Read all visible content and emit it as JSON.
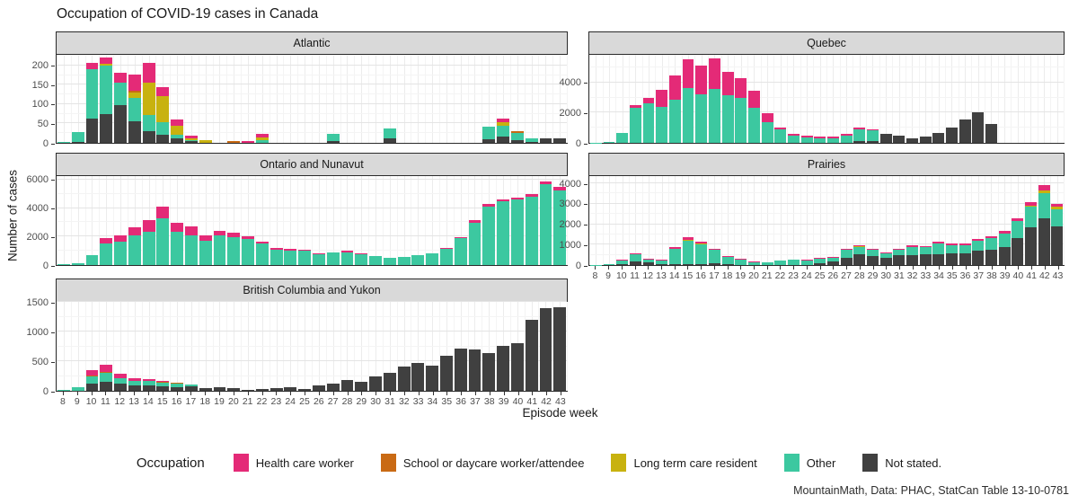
{
  "chart_data": {
    "type": "bar",
    "stacked": true,
    "title": "Occupation of COVID-19 cases in Canada",
    "xlabel": "Episode week",
    "ylabel": "Number of cases",
    "caption": "MountainMath, Data: PHAC, StatCan Table 13-10-0781",
    "grid": true,
    "weeks": [
      "8",
      "9",
      "10",
      "11",
      "12",
      "13",
      "14",
      "15",
      "16",
      "17",
      "18",
      "19",
      "20",
      "21",
      "22",
      "23",
      "24",
      "25",
      "26",
      "27",
      "28",
      "29",
      "30",
      "31",
      "32",
      "33",
      "34",
      "35",
      "36",
      "37",
      "38",
      "39",
      "40",
      "41",
      "42",
      "43"
    ],
    "legend": {
      "title": "Occupation",
      "position": "bottom",
      "entries": [
        {
          "key": "hcw",
          "label": "Health care worker",
          "color": "#e42a77"
        },
        {
          "key": "school",
          "label": "School or daycare worker/attendee",
          "color": "#c96a14"
        },
        {
          "key": "ltc",
          "label": "Long term care resident",
          "color": "#c8b20f"
        },
        {
          "key": "other",
          "label": "Other",
          "color": "#3cc8a0"
        },
        {
          "key": "not_stated",
          "label": "Not stated.",
          "color": "#404040"
        }
      ]
    },
    "stack_order_bottom_to_top": [
      "not_stated",
      "other",
      "ltc",
      "school",
      "hcw"
    ],
    "facets": [
      {
        "name": "Atlantic",
        "ylim": [
          0,
          230
        ],
        "yticks": [
          0,
          50,
          100,
          150,
          200
        ],
        "series": {
          "not_stated": [
            0,
            3,
            65,
            75,
            100,
            57,
            30,
            22,
            12,
            4,
            0,
            0,
            0,
            0,
            0,
            0,
            0,
            0,
            0,
            4,
            0,
            0,
            0,
            12,
            0,
            0,
            0,
            0,
            0,
            0,
            10,
            17,
            8,
            3,
            12,
            12
          ],
          "other": [
            2,
            25,
            130,
            130,
            60,
            61,
            43,
            33,
            10,
            4,
            0,
            0,
            0,
            0,
            8,
            0,
            0,
            0,
            0,
            19,
            0,
            0,
            0,
            26,
            0,
            0,
            0,
            0,
            0,
            0,
            32,
            28,
            19,
            8,
            0,
            0
          ],
          "ltc": [
            0,
            0,
            0,
            3,
            0,
            15,
            87,
            68,
            23,
            3,
            8,
            0,
            0,
            0,
            6,
            0,
            0,
            0,
            0,
            0,
            0,
            0,
            0,
            0,
            0,
            0,
            0,
            0,
            0,
            0,
            0,
            10,
            0,
            0,
            0,
            0
          ],
          "school": [
            0,
            0,
            0,
            0,
            0,
            5,
            0,
            0,
            0,
            0,
            0,
            0,
            5,
            0,
            0,
            0,
            0,
            0,
            0,
            0,
            0,
            0,
            0,
            0,
            0,
            0,
            0,
            0,
            0,
            0,
            0,
            0,
            3,
            0,
            0,
            0
          ],
          "hcw": [
            0,
            0,
            15,
            18,
            25,
            42,
            50,
            25,
            17,
            7,
            0,
            0,
            0,
            4,
            10,
            0,
            0,
            0,
            0,
            0,
            0,
            0,
            0,
            0,
            0,
            0,
            0,
            0,
            0,
            0,
            0,
            8,
            0,
            0,
            0,
            0
          ]
        }
      },
      {
        "name": "Quebec",
        "ylim": [
          0,
          5900
        ],
        "yticks": [
          0,
          2000,
          4000
        ],
        "series": {
          "not_stated": [
            0,
            0,
            0,
            0,
            0,
            0,
            0,
            0,
            0,
            0,
            0,
            0,
            0,
            0,
            0,
            0,
            0,
            0,
            0,
            0,
            100,
            150,
            600,
            480,
            320,
            400,
            650,
            1050,
            1600,
            2050,
            1300,
            0,
            0,
            0,
            0,
            0
          ],
          "other": [
            30,
            60,
            700,
            2350,
            2700,
            2450,
            2950,
            3700,
            3300,
            3650,
            3250,
            3050,
            2400,
            1400,
            900,
            500,
            380,
            330,
            330,
            480,
            800,
            700,
            0,
            0,
            0,
            0,
            0,
            0,
            0,
            0,
            0,
            0,
            0,
            0,
            0,
            0
          ],
          "ltc": [
            0,
            0,
            0,
            0,
            0,
            0,
            0,
            0,
            0,
            0,
            0,
            0,
            0,
            0,
            0,
            0,
            0,
            0,
            0,
            0,
            0,
            0,
            0,
            0,
            0,
            0,
            0,
            0,
            0,
            0,
            0,
            0,
            0,
            0,
            0,
            0
          ],
          "school": [
            0,
            0,
            0,
            30,
            0,
            0,
            0,
            0,
            0,
            0,
            0,
            0,
            0,
            0,
            0,
            0,
            0,
            0,
            0,
            0,
            0,
            0,
            0,
            0,
            0,
            0,
            0,
            0,
            0,
            0,
            0,
            0,
            0,
            0,
            0,
            0
          ],
          "hcw": [
            0,
            0,
            0,
            150,
            350,
            1150,
            1600,
            1950,
            1950,
            2050,
            1550,
            1350,
            1100,
            600,
            160,
            100,
            120,
            100,
            120,
            140,
            120,
            80,
            0,
            0,
            0,
            0,
            0,
            0,
            0,
            0,
            0,
            0,
            0,
            0,
            0,
            0
          ]
        }
      },
      {
        "name": "Ontario and Nunavut",
        "ylim": [
          0,
          6300
        ],
        "yticks": [
          0,
          2000,
          4000,
          6000
        ],
        "series": {
          "not_stated": [
            0,
            0,
            0,
            0,
            0,
            0,
            0,
            0,
            0,
            0,
            0,
            0,
            0,
            0,
            0,
            0,
            0,
            0,
            0,
            0,
            0,
            0,
            0,
            0,
            0,
            0,
            0,
            0,
            0,
            0,
            0,
            0,
            0,
            0,
            0,
            0
          ],
          "other": [
            50,
            130,
            700,
            1550,
            1650,
            2100,
            2400,
            3350,
            2350,
            2150,
            1750,
            2100,
            2000,
            1850,
            1550,
            1100,
            1050,
            1000,
            800,
            880,
            930,
            780,
            620,
            520,
            600,
            700,
            850,
            1180,
            1900,
            3050,
            4150,
            4550,
            4700,
            4900,
            5800,
            5350
          ],
          "ltc": [
            0,
            0,
            0,
            0,
            0,
            0,
            0,
            0,
            0,
            0,
            0,
            0,
            0,
            0,
            0,
            0,
            0,
            0,
            0,
            0,
            0,
            0,
            0,
            0,
            0,
            0,
            0,
            0,
            0,
            0,
            0,
            0,
            0,
            0,
            0,
            0
          ],
          "school": [
            0,
            0,
            0,
            0,
            0,
            0,
            0,
            0,
            0,
            0,
            0,
            0,
            0,
            0,
            0,
            0,
            0,
            0,
            0,
            0,
            0,
            0,
            0,
            0,
            0,
            0,
            0,
            0,
            0,
            0,
            0,
            0,
            0,
            0,
            0,
            0
          ],
          "hcw": [
            0,
            0,
            0,
            400,
            450,
            600,
            800,
            850,
            700,
            600,
            350,
            350,
            300,
            200,
            100,
            100,
            130,
            100,
            50,
            50,
            70,
            40,
            0,
            0,
            0,
            0,
            0,
            70,
            80,
            150,
            200,
            150,
            150,
            200,
            200,
            250
          ]
        }
      },
      {
        "name": "Prairies",
        "ylim": [
          0,
          4400
        ],
        "yticks": [
          0,
          1000,
          2000,
          3000,
          4000
        ],
        "series": {
          "not_stated": [
            0,
            0,
            60,
            190,
            120,
            60,
            50,
            50,
            60,
            80,
            40,
            0,
            0,
            0,
            0,
            0,
            0,
            70,
            200,
            350,
            520,
            450,
            350,
            500,
            480,
            550,
            560,
            580,
            580,
            700,
            750,
            900,
            1350,
            1900,
            2350,
            1950
          ],
          "other": [
            20,
            40,
            180,
            330,
            160,
            180,
            750,
            1170,
            990,
            700,
            350,
            280,
            150,
            130,
            220,
            250,
            230,
            260,
            180,
            420,
            400,
            300,
            250,
            250,
            420,
            350,
            540,
            420,
            420,
            500,
            600,
            650,
            850,
            1000,
            1250,
            850
          ],
          "ltc": [
            0,
            0,
            0,
            0,
            0,
            0,
            20,
            40,
            40,
            0,
            0,
            0,
            0,
            0,
            0,
            0,
            0,
            0,
            0,
            0,
            20,
            30,
            0,
            0,
            0,
            0,
            0,
            0,
            0,
            0,
            0,
            0,
            0,
            50,
            150,
            100
          ],
          "school": [
            0,
            0,
            0,
            0,
            0,
            0,
            0,
            0,
            0,
            0,
            0,
            0,
            0,
            0,
            0,
            0,
            0,
            0,
            0,
            0,
            0,
            0,
            0,
            0,
            0,
            0,
            0,
            0,
            0,
            0,
            0,
            0,
            0,
            0,
            0,
            0
          ],
          "hcw": [
            0,
            0,
            30,
            60,
            40,
            40,
            60,
            120,
            60,
            50,
            40,
            20,
            10,
            0,
            0,
            30,
            20,
            30,
            10,
            40,
            60,
            50,
            40,
            50,
            80,
            50,
            70,
            60,
            90,
            90,
            100,
            150,
            150,
            200,
            230,
            150
          ]
        }
      },
      {
        "name": "British Columbia and Yukon",
        "ylim": [
          0,
          1520
        ],
        "yticks": [
          0,
          500,
          1000,
          1500
        ],
        "series": {
          "not_stated": [
            0,
            5,
            120,
            150,
            120,
            90,
            100,
            80,
            70,
            85,
            40,
            70,
            40,
            15,
            30,
            45,
            55,
            35,
            90,
            125,
            185,
            150,
            255,
            310,
            420,
            480,
            430,
            600,
            735,
            715,
            645,
            780,
            820,
            1220,
            1430,
            1450
          ],
          "other": [
            15,
            55,
            130,
            160,
            100,
            80,
            70,
            60,
            50,
            20,
            0,
            0,
            0,
            0,
            0,
            0,
            0,
            0,
            0,
            0,
            0,
            0,
            0,
            0,
            0,
            0,
            0,
            0,
            0,
            0,
            0,
            0,
            0,
            0,
            0,
            0
          ],
          "ltc": [
            0,
            0,
            0,
            0,
            0,
            0,
            0,
            0,
            0,
            0,
            0,
            0,
            0,
            0,
            0,
            0,
            0,
            0,
            0,
            0,
            0,
            0,
            0,
            0,
            0,
            0,
            0,
            0,
            0,
            0,
            0,
            0,
            0,
            0,
            0,
            0
          ],
          "school": [
            0,
            0,
            10,
            10,
            0,
            5,
            0,
            10,
            15,
            5,
            0,
            0,
            0,
            0,
            0,
            0,
            0,
            0,
            0,
            0,
            0,
            0,
            0,
            0,
            0,
            0,
            0,
            0,
            0,
            0,
            0,
            0,
            0,
            0,
            0,
            0
          ],
          "hcw": [
            0,
            0,
            100,
            130,
            80,
            45,
            30,
            15,
            5,
            0,
            0,
            0,
            0,
            0,
            0,
            0,
            0,
            0,
            0,
            0,
            0,
            0,
            0,
            0,
            0,
            0,
            0,
            0,
            0,
            0,
            0,
            0,
            0,
            0,
            0,
            0
          ]
        }
      }
    ]
  }
}
